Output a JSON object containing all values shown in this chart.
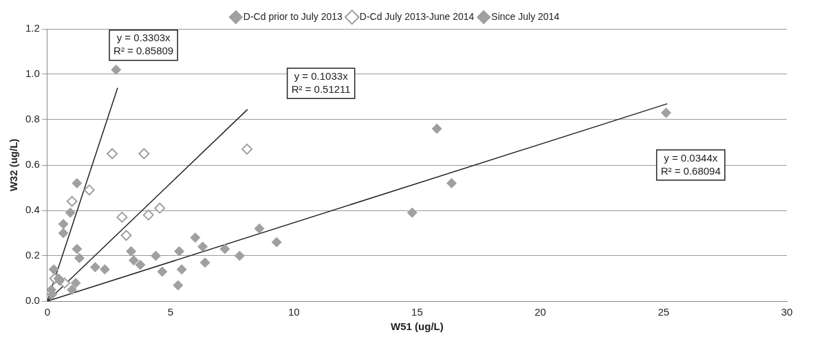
{
  "chart_data": {
    "type": "scatter",
    "xlabel": "W51 (ug/L)",
    "ylabel": "W32 (ug/L)",
    "xlim": [
      0,
      30
    ],
    "xticks": [
      0,
      5,
      10,
      15,
      20,
      25,
      30
    ],
    "ylim": [
      0,
      1.2
    ],
    "yticks": [
      {
        "value": 0,
        "label": "0.0"
      },
      {
        "value": 0.2,
        "label": "0.2"
      },
      {
        "value": 0.4,
        "label": "0.4"
      },
      {
        "value": 0.6,
        "label": "0.6"
      },
      {
        "value": 0.8,
        "label": "0.8"
      },
      {
        "value": 1.0,
        "label": "1.0"
      },
      {
        "value": 1.2,
        "label": "1.2"
      }
    ],
    "grid": "y",
    "legend": "top",
    "series": [
      {
        "name": "D-Cd prior to July 2013",
        "color": "#a0a0a0",
        "marker": "diamond",
        "x": [
          2.79,
          1.2,
          0.93,
          0.65,
          0.65,
          0.26,
          0.16,
          0.45,
          1.2,
          1.3,
          1.15,
          1.0,
          0.5
        ],
        "values": [
          1.02,
          0.52,
          0.39,
          0.34,
          0.3,
          0.14,
          0.05,
          0.1,
          0.23,
          0.19,
          0.08,
          0.05,
          0.09
        ]
      },
      {
        "name": "D-Cd July 2013-June 2014",
        "color": "#a0a0a0",
        "marker": "diamond",
        "x": [
          2.63,
          3.92,
          8.1,
          1.7,
          1.0,
          3.03,
          3.2,
          4.1,
          4.56,
          0.3,
          0.7
        ],
        "values": [
          0.65,
          0.65,
          0.67,
          0.49,
          0.44,
          0.37,
          0.29,
          0.38,
          0.41,
          0.1,
          0.08
        ]
      },
      {
        "name": "Since July 2014",
        "color": "#a0a0a0",
        "marker": "diamond",
        "x": [
          25.1,
          15.8,
          16.4,
          14.8,
          8.6,
          9.3,
          7.8,
          7.2,
          6.0,
          6.3,
          6.4,
          5.35,
          5.45,
          5.3,
          1.94,
          2.33,
          3.4,
          3.5,
          3.77,
          4.4,
          4.66,
          0.2
        ],
        "values": [
          0.83,
          0.76,
          0.52,
          0.39,
          0.32,
          0.26,
          0.2,
          0.23,
          0.28,
          0.24,
          0.17,
          0.22,
          0.14,
          0.07,
          0.15,
          0.14,
          0.22,
          0.18,
          0.16,
          0.2,
          0.13,
          0.03
        ]
      },
      {
        "type": "line",
        "color": "#222222",
        "marker": "none",
        "x": [
          0,
          2.85
        ],
        "values": [
          0,
          0.94
        ]
      },
      {
        "type": "line",
        "color": "#222222",
        "marker": "none",
        "x": [
          0,
          8.12
        ],
        "values": [
          0,
          0.845
        ]
      },
      {
        "type": "line",
        "color": "#222222",
        "marker": "none",
        "x": [
          0,
          25.15
        ],
        "values": [
          0,
          0.87
        ]
      }
    ],
    "annotations": [
      "y = 0.3303x\nR² = 0.85809",
      "y = 0.1033x\nR² = 0.51211",
      "y = 0.0344x\nR² = 0.68094"
    ]
  }
}
